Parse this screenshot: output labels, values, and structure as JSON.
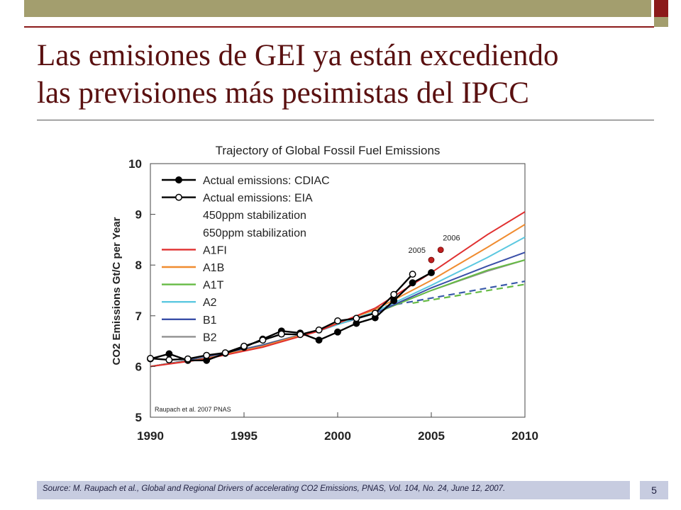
{
  "slide": {
    "title_line1": "Las emisiones de GEI ya están excediendo",
    "title_line2": "las previsiones más pesimistas del IPCC",
    "source": "Source: M. Raupach et al., Global and Regional Drivers of accelerating CO2 Emissions, PNAS, Vol. 104, No. 24, June 12, 2007.",
    "page_number": "5"
  },
  "colors": {
    "title": "#5a1010",
    "accent_bar": "#a39e6e",
    "accent_dark": "#8b1a1a",
    "footer_bg": "#c7cce0"
  },
  "chart_data": {
    "type": "line",
    "title": "Trajectory of Global Fossil Fuel Emissions",
    "ylabel": "CO2 Emissions Gt/C per Year",
    "xlabel": "",
    "xlim": [
      1990,
      2010
    ],
    "ylim": [
      5,
      10
    ],
    "x_ticks": [
      "1990",
      "1995",
      "2000",
      "2005",
      "2010"
    ],
    "y_ticks": [
      "5",
      "6",
      "7",
      "8",
      "9",
      "10"
    ],
    "credit": "Raupach et al. 2007 PNAS",
    "legend_position": "top-left",
    "series": [
      {
        "name": "Actual emissions: CDIAC",
        "color": "#000000",
        "style": "line-filled-markers",
        "x": [
          1990,
          1991,
          1992,
          1993,
          1994,
          1995,
          1996,
          1997,
          1998,
          1999,
          2000,
          2001,
          2002,
          2003,
          2004,
          2005
        ],
        "y": [
          6.15,
          6.25,
          6.12,
          6.12,
          6.26,
          6.38,
          6.54,
          6.7,
          6.66,
          6.52,
          6.68,
          6.85,
          6.96,
          7.3,
          7.65,
          7.85
        ]
      },
      {
        "name": "Actual emissions: EIA",
        "color": "#000000",
        "style": "line-open-markers",
        "x": [
          1990,
          1991,
          1992,
          1993,
          1994,
          1995,
          1996,
          1997,
          1998,
          1999,
          2000,
          2001,
          2002,
          2003,
          2004
        ],
        "y": [
          6.16,
          6.13,
          6.15,
          6.22,
          6.27,
          6.4,
          6.52,
          6.64,
          6.63,
          6.72,
          6.9,
          6.95,
          7.05,
          7.42,
          7.82
        ]
      },
      {
        "name": "450ppm stabilization",
        "color": "#3a5aaa",
        "style": "dashed",
        "x": [
          2002,
          2010
        ],
        "y": [
          7.15,
          7.68
        ]
      },
      {
        "name": "650ppm stabilization",
        "color": "#66bb44",
        "style": "dashed",
        "x": [
          2004,
          2010
        ],
        "y": [
          7.25,
          7.62
        ]
      },
      {
        "name": "A1FI",
        "color": "#e03030",
        "style": "line",
        "x": [
          1990,
          1993,
          1996,
          1999,
          2002,
          2005,
          2008,
          2010
        ],
        "y": [
          6.0,
          6.15,
          6.38,
          6.7,
          7.15,
          7.85,
          8.6,
          9.05
        ]
      },
      {
        "name": "A1B",
        "color": "#f08c30",
        "style": "line",
        "x": [
          1990,
          1993,
          1996,
          1999,
          2002,
          2005,
          2008,
          2010
        ],
        "y": [
          6.0,
          6.16,
          6.4,
          6.72,
          7.12,
          7.7,
          8.35,
          8.8
        ]
      },
      {
        "name": "A1T",
        "color": "#66bb44",
        "style": "line",
        "x": [
          1990,
          1993,
          1996,
          1999,
          2002,
          2005,
          2008,
          2010
        ],
        "y": [
          6.0,
          6.18,
          6.42,
          6.72,
          7.05,
          7.5,
          7.9,
          8.1
        ]
      },
      {
        "name": "A2",
        "color": "#5bc8e0",
        "style": "line",
        "x": [
          1990,
          1993,
          1996,
          1999,
          2002,
          2005,
          2008,
          2010
        ],
        "y": [
          6.0,
          6.16,
          6.4,
          6.7,
          7.08,
          7.6,
          8.15,
          8.55
        ]
      },
      {
        "name": "B1",
        "color": "#3a4fa8",
        "style": "line",
        "x": [
          1990,
          1993,
          1996,
          1999,
          2002,
          2005,
          2008,
          2010
        ],
        "y": [
          6.0,
          6.18,
          6.42,
          6.72,
          7.05,
          7.55,
          7.98,
          8.25
        ]
      },
      {
        "name": "B2",
        "color": "#909090",
        "style": "line",
        "x": [
          1990,
          1993,
          1996,
          1999,
          2002,
          2005,
          2008,
          2010
        ],
        "y": [
          6.0,
          6.18,
          6.43,
          6.72,
          7.05,
          7.5,
          7.88,
          8.1
        ]
      }
    ],
    "annotations": [
      {
        "label": "2005",
        "x": 2005,
        "y": 8.1,
        "color": "#c02020"
      },
      {
        "label": "2006",
        "x": 2005.5,
        "y": 8.3,
        "color": "#c02020"
      }
    ]
  }
}
